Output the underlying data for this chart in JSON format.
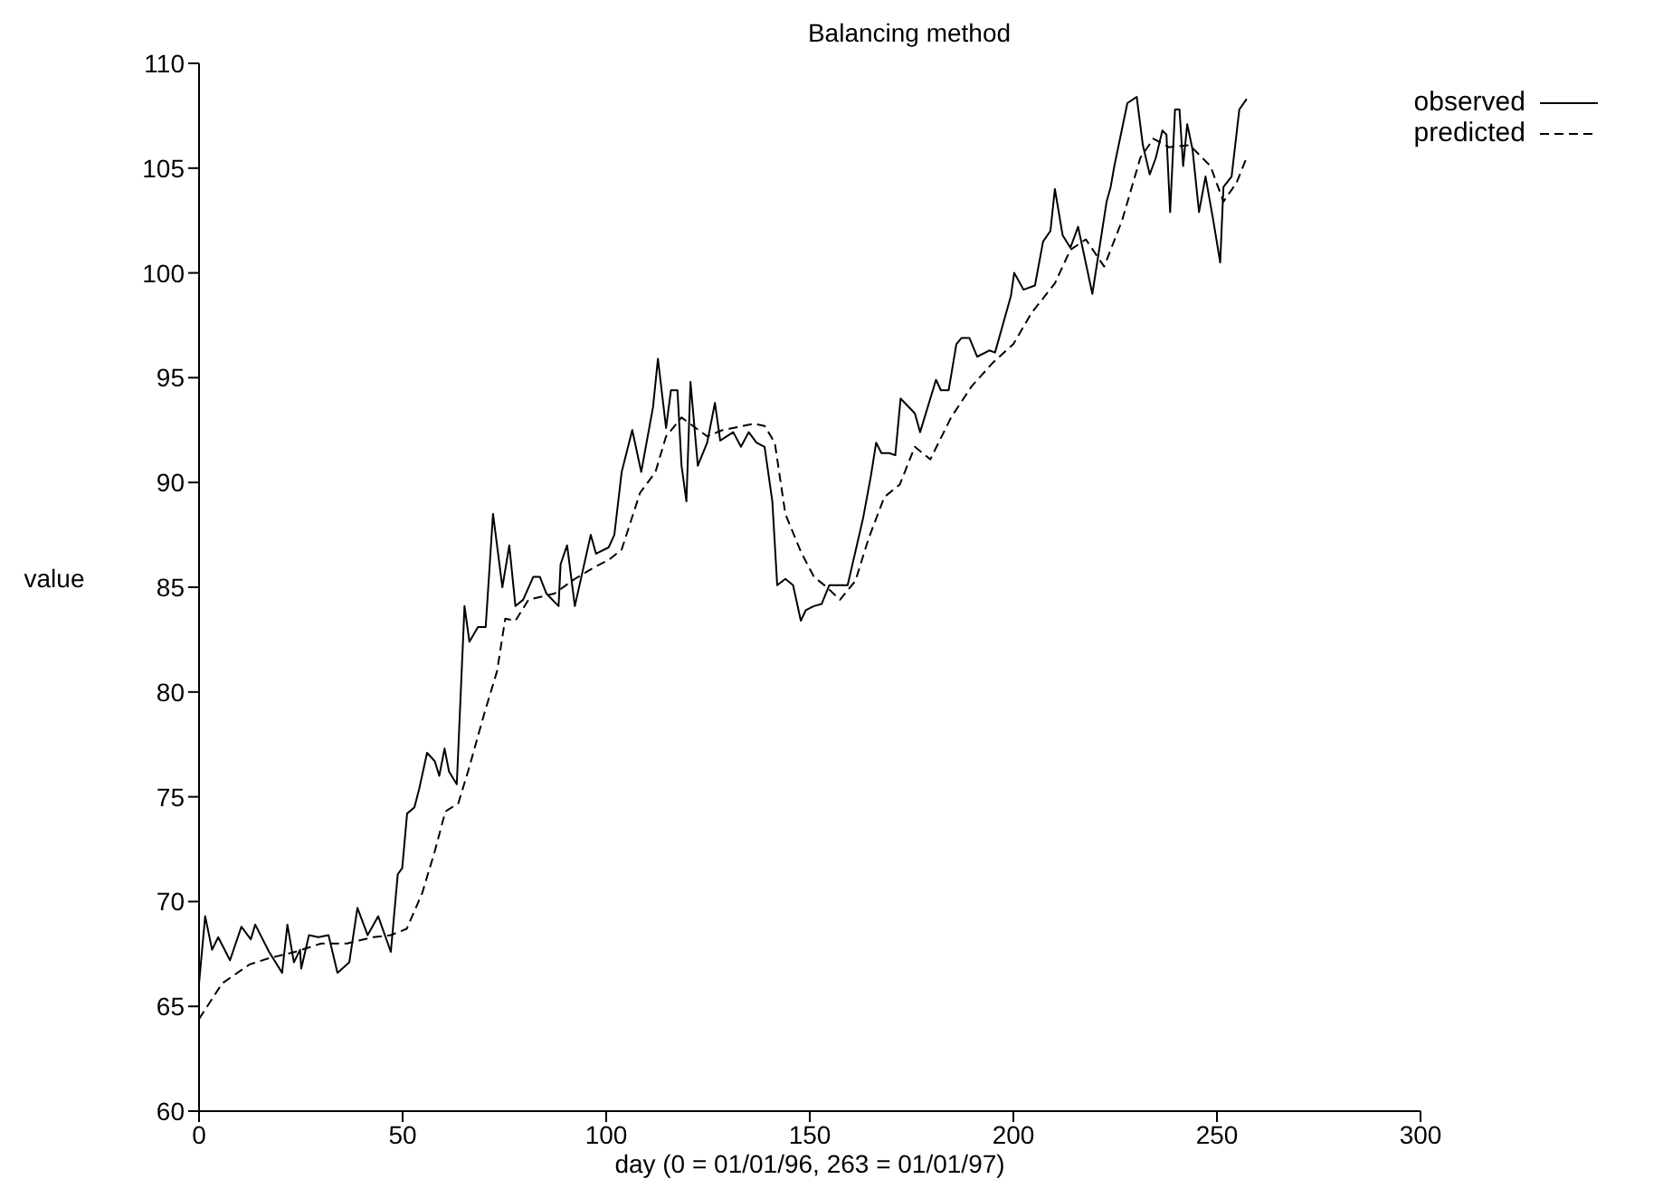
{
  "chart_data": {
    "type": "line",
    "title": "Balancing method",
    "xlabel": "day (0 = 01/01/96, 263 = 01/01/97)",
    "ylabel": "value",
    "xlim": [
      0,
      300
    ],
    "xticks": [
      0,
      50,
      100,
      150,
      200,
      250,
      300
    ],
    "ylim": [
      60,
      110
    ],
    "yticks": [
      60,
      65,
      70,
      75,
      80,
      85,
      90,
      95,
      100,
      105,
      110
    ],
    "grid": false,
    "legend": "top right",
    "series": [
      {
        "name": "observed",
        "color": "#000000",
        "line_style": "solid",
        "x": [
          0,
          1.5,
          3.2,
          4.7,
          7.6,
          10.4,
          12.7,
          13.8,
          17.2,
          20.4,
          21.7,
          23.3,
          24.8,
          25.1,
          27,
          29.3,
          31.8,
          34,
          36.9,
          38.9,
          41.4,
          44,
          47.1,
          48.8,
          49.9,
          51.1,
          52.9,
          54.1,
          56,
          57.9,
          59,
          60.3,
          61.4,
          63.3,
          65.2,
          66.4,
          68.5,
          70.4,
          72.2,
          74.5,
          76.2,
          77.7,
          79.6,
          82.1,
          83.7,
          85.3,
          88.3,
          88.8,
          90.4,
          92.3,
          96.2,
          97.5,
          100.6,
          102,
          103.8,
          106.4,
          108.6,
          111.5,
          112.7,
          114.7,
          115.9,
          117.5,
          118.5,
          119.7,
          120.7,
          122.5,
          124.8,
          126.7,
          128,
          131.2,
          133.1,
          135,
          136.9,
          138.9,
          140.8,
          142,
          144,
          145.9,
          147.8,
          149,
          151,
          152.9,
          154.8,
          159.3,
          163.1,
          165,
          166.3,
          167.6,
          169.5,
          171,
          172.3,
          175.8,
          177.1,
          181,
          182.2,
          184.1,
          186,
          187.3,
          189.2,
          191.1,
          194.1,
          195.5,
          199.4,
          200.2,
          202.5,
          205.3,
          207.3,
          209.1,
          210.2,
          212.1,
          214,
          215.9,
          219.4,
          222.9,
          223.9,
          224.8,
          228,
          230.3,
          231.8,
          233.5,
          235,
          236.6,
          237.6,
          238.5,
          239.7,
          240.8,
          241.7,
          242.7,
          244,
          245.6,
          247.2,
          249.1,
          250.8,
          251.6,
          253.6,
          255.5,
          257.3
        ],
        "values": [
          66.1,
          69.3,
          67.7,
          68.3,
          67.2,
          68.8,
          68.2,
          68.9,
          67.6,
          66.6,
          68.9,
          67.1,
          67.7,
          66.8,
          68.4,
          68.3,
          68.4,
          66.6,
          67.1,
          69.7,
          68.4,
          69.3,
          67.6,
          71.3,
          71.6,
          74.2,
          74.5,
          75.4,
          77.1,
          76.7,
          76,
          77.3,
          76.2,
          75.6,
          84.1,
          82.4,
          83.1,
          83.1,
          88.5,
          85,
          87,
          84.1,
          84.4,
          85.5,
          85.5,
          84.7,
          84.1,
          86.1,
          87,
          84.1,
          87.5,
          86.6,
          86.9,
          87.5,
          90.5,
          92.5,
          90.5,
          93.6,
          95.9,
          92.6,
          94.4,
          94.4,
          90.8,
          89.1,
          94.8,
          90.8,
          91.9,
          93.8,
          92,
          92.4,
          91.7,
          92.4,
          91.9,
          91.7,
          89.1,
          85.1,
          85.4,
          85.1,
          83.4,
          83.9,
          84.1,
          84.2,
          85.1,
          85.1,
          88.3,
          90.3,
          91.9,
          91.4,
          91.4,
          91.3,
          94,
          93.3,
          92.4,
          94.9,
          94.4,
          94.4,
          96.6,
          96.9,
          96.9,
          96,
          96.3,
          96.2,
          98.9,
          100,
          99.2,
          99.4,
          101.5,
          102,
          104,
          101.8,
          101.2,
          102.2,
          99,
          103.4,
          104.1,
          105.1,
          108.1,
          108.4,
          106.1,
          104.7,
          105.5,
          106.8,
          106.6,
          102.9,
          107.8,
          107.8,
          105.1,
          107.1,
          105.9,
          102.9,
          104.6,
          102.5,
          100.5,
          104.1,
          104.6,
          107.8,
          108.3
        ]
      },
      {
        "name": "predicted",
        "color": "#000000",
        "line_style": "dashed",
        "x": [
          0,
          5.7,
          12.4,
          17.2,
          23.6,
          30,
          36.3,
          42.7,
          47.1,
          51,
          54.8,
          57.9,
          60.5,
          63.7,
          66.2,
          70.1,
          73.2,
          75.2,
          77.7,
          80.9,
          87.3,
          92.3,
          97.5,
          100.6,
          103.8,
          108.3,
          112.1,
          114.7,
          118.5,
          124.8,
          128.6,
          136.3,
          138.9,
          141.4,
          144,
          147.8,
          151,
          154.2,
          157.4,
          161.2,
          164.4,
          168.3,
          172.1,
          175.8,
          179.6,
          184.7,
          189.8,
          194.9,
          200,
          204.5,
          210.2,
          214,
          217.8,
          222.3,
          226.7,
          231.2,
          234.4,
          238.2,
          243.3,
          248.4,
          251.6,
          254.8,
          257.3
        ],
        "values": [
          64.4,
          66.1,
          67,
          67.3,
          67.6,
          68,
          68,
          68.3,
          68.4,
          68.7,
          70.4,
          72.4,
          74.3,
          74.7,
          76.3,
          79,
          81,
          83.5,
          83.4,
          84.4,
          84.7,
          85.4,
          86,
          86.3,
          86.8,
          89.5,
          90.5,
          92.2,
          93.1,
          92.2,
          92.5,
          92.8,
          92.7,
          91.9,
          88.5,
          86.7,
          85.5,
          85,
          84.4,
          85.3,
          87.3,
          89.3,
          89.9,
          91.7,
          91.1,
          93.1,
          94.6,
          95.7,
          96.6,
          98.1,
          99.5,
          101.1,
          101.6,
          100.3,
          102.5,
          105.5,
          106.4,
          106,
          106.1,
          105.1,
          103.4,
          104.3,
          105.5
        ]
      }
    ]
  }
}
